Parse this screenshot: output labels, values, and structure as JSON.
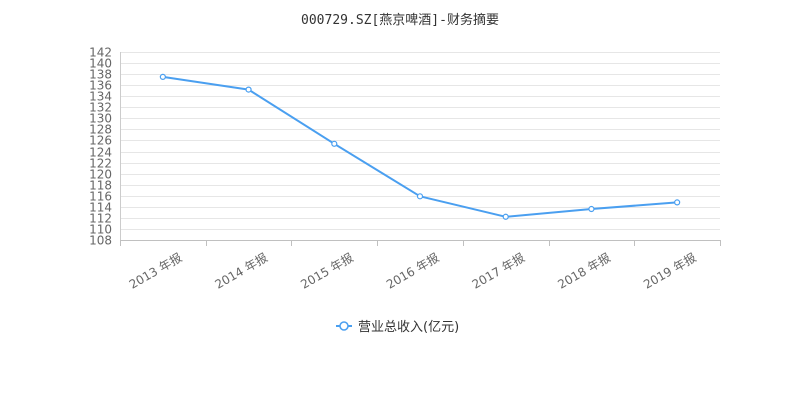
{
  "chart_data": {
    "type": "line",
    "title": "000729.SZ[燕京啤酒]-财务摘要",
    "categories": [
      "2013 年报",
      "2014 年报",
      "2015 年报",
      "2016 年报",
      "2017 年报",
      "2018 年报",
      "2019 年报"
    ],
    "series": [
      {
        "name": "营业总收入(亿元)",
        "values": [
          137.5,
          135.2,
          125.4,
          115.9,
          112.2,
          113.6,
          114.8
        ],
        "color": "#4a9ff0"
      }
    ],
    "ylim": [
      108,
      142
    ],
    "yticks": [
      108,
      110,
      112,
      114,
      116,
      118,
      120,
      122,
      124,
      126,
      128,
      130,
      132,
      134,
      136,
      138,
      140,
      142
    ],
    "grid": true,
    "legend": "bottom-center"
  }
}
